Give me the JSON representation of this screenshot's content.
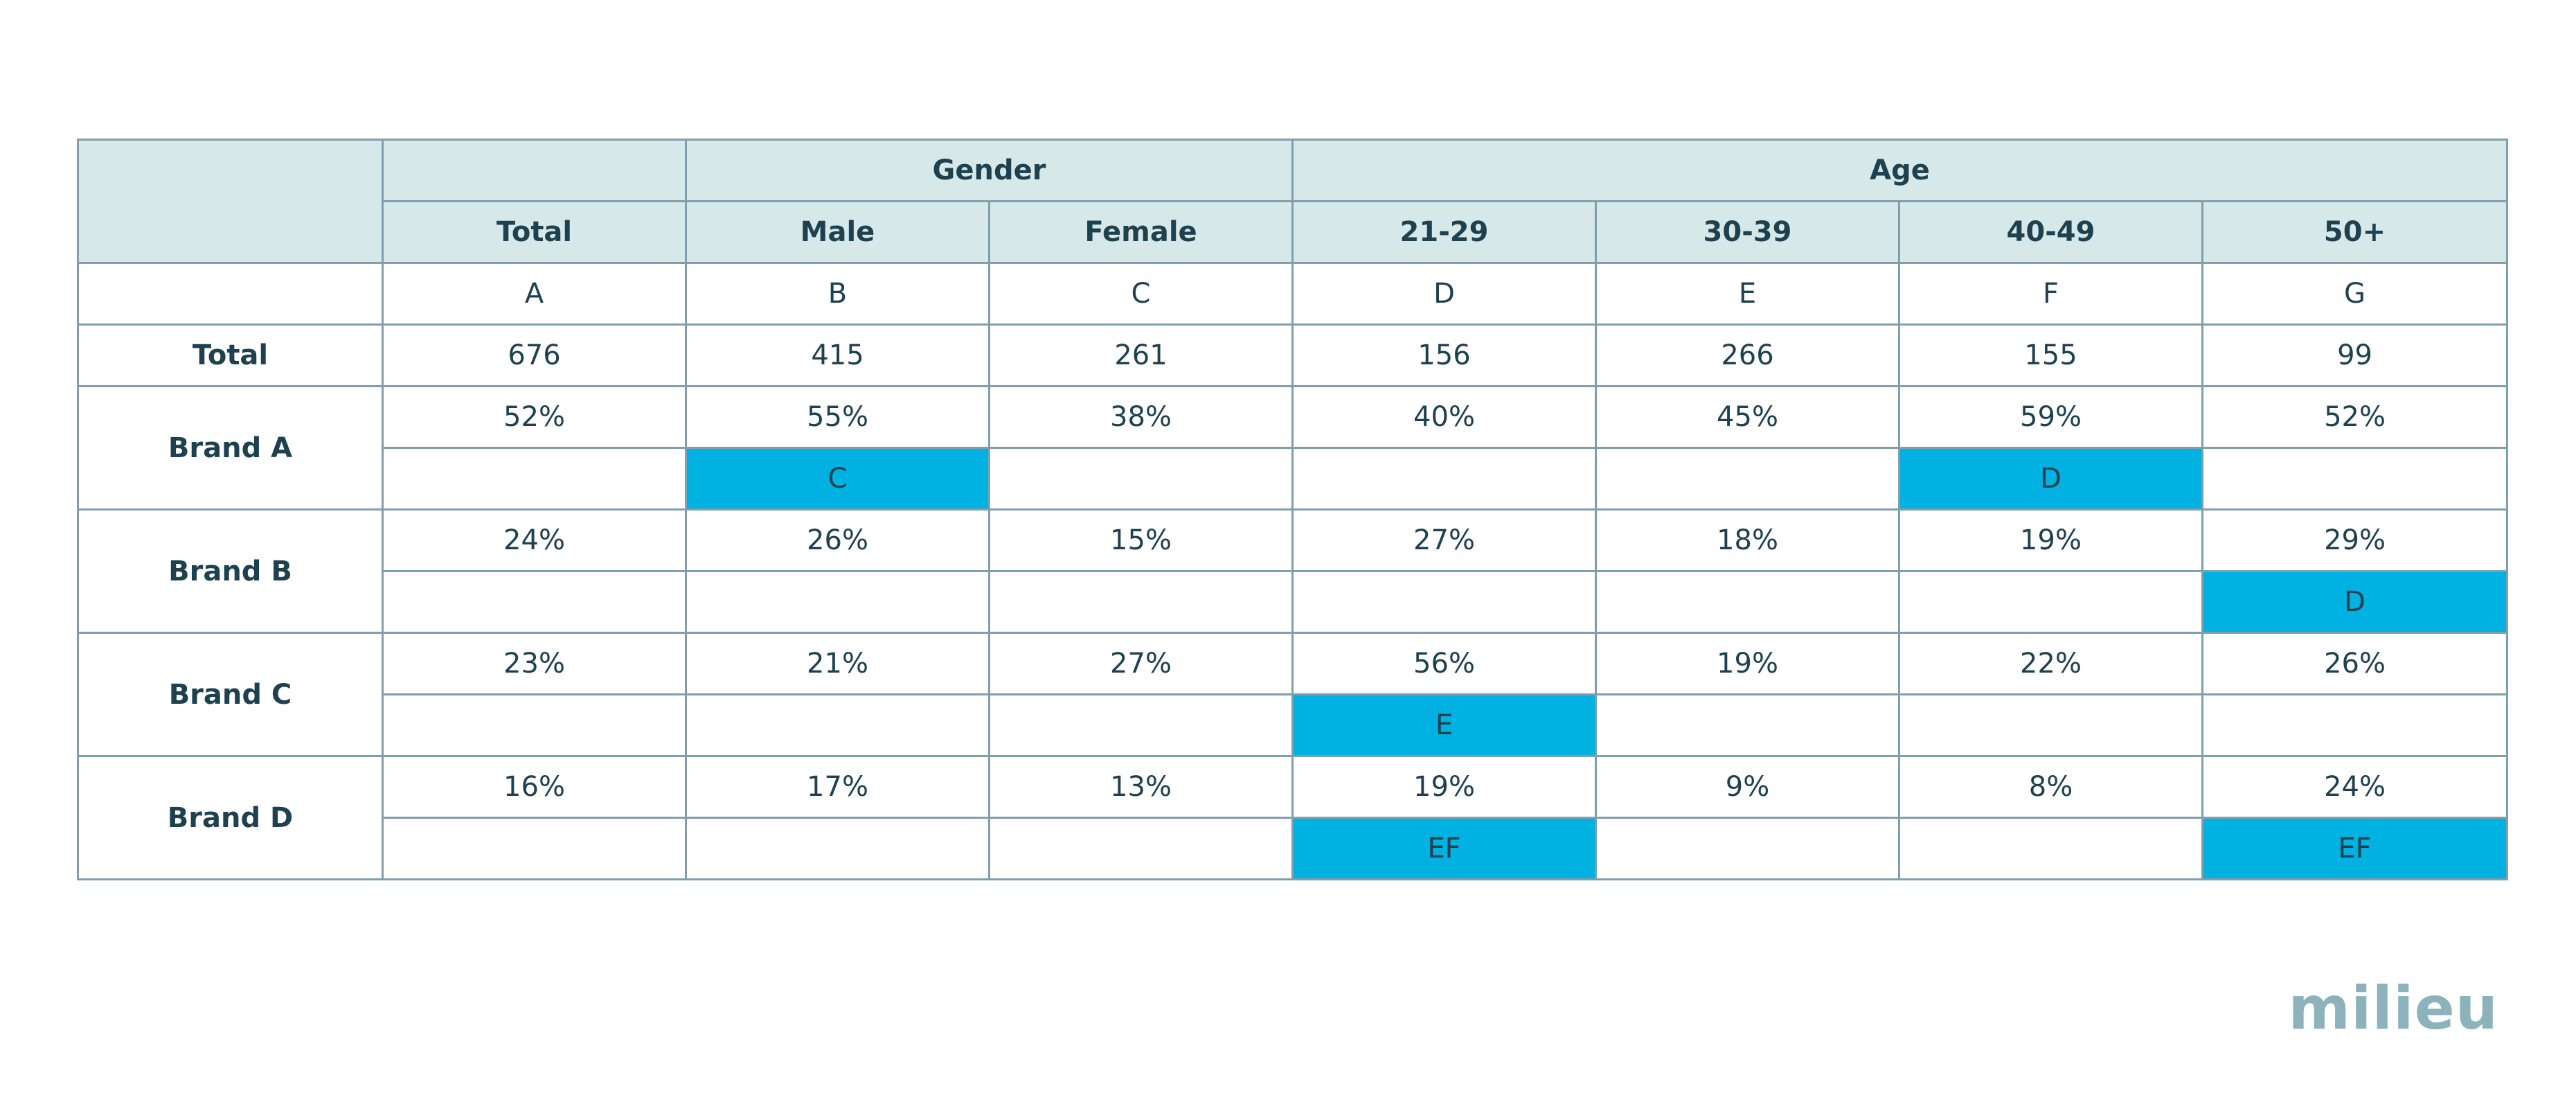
{
  "chart_data": {
    "type": "table",
    "groups": [
      {
        "label": "",
        "span": 1
      },
      {
        "label": "Gender",
        "span": 2
      },
      {
        "label": "Age",
        "span": 4
      }
    ],
    "columns": [
      "Total",
      "Male",
      "Female",
      "21-29",
      "30-39",
      "40-49",
      "50+"
    ],
    "column_letters": [
      "A",
      "B",
      "C",
      "D",
      "E",
      "F",
      "G"
    ],
    "total_row": {
      "label": "Total",
      "values": [
        "676",
        "415",
        "261",
        "156",
        "266",
        "155",
        "99"
      ]
    },
    "rows": [
      {
        "label": "Brand A",
        "values": [
          "52%",
          "55%",
          "38%",
          "40%",
          "45%",
          "59%",
          "52%"
        ],
        "sig": [
          "",
          "C",
          "",
          "",
          "",
          "D",
          ""
        ]
      },
      {
        "label": "Brand B",
        "values": [
          "24%",
          "26%",
          "15%",
          "27%",
          "18%",
          "19%",
          "29%"
        ],
        "sig": [
          "",
          "",
          "",
          "",
          "",
          "",
          "D"
        ]
      },
      {
        "label": "Brand C",
        "values": [
          "23%",
          "21%",
          "27%",
          "56%",
          "19%",
          "22%",
          "26%"
        ],
        "sig": [
          "",
          "",
          "",
          "E",
          "",
          "",
          ""
        ]
      },
      {
        "label": "Brand D",
        "values": [
          "16%",
          "17%",
          "13%",
          "19%",
          "9%",
          "8%",
          "24%"
        ],
        "sig": [
          "",
          "",
          "",
          "EF",
          "",
          "",
          "EF"
        ]
      }
    ],
    "highlight_color": "#00b1e1",
    "header_color": "#d7e8e8"
  },
  "logo": "milieu"
}
